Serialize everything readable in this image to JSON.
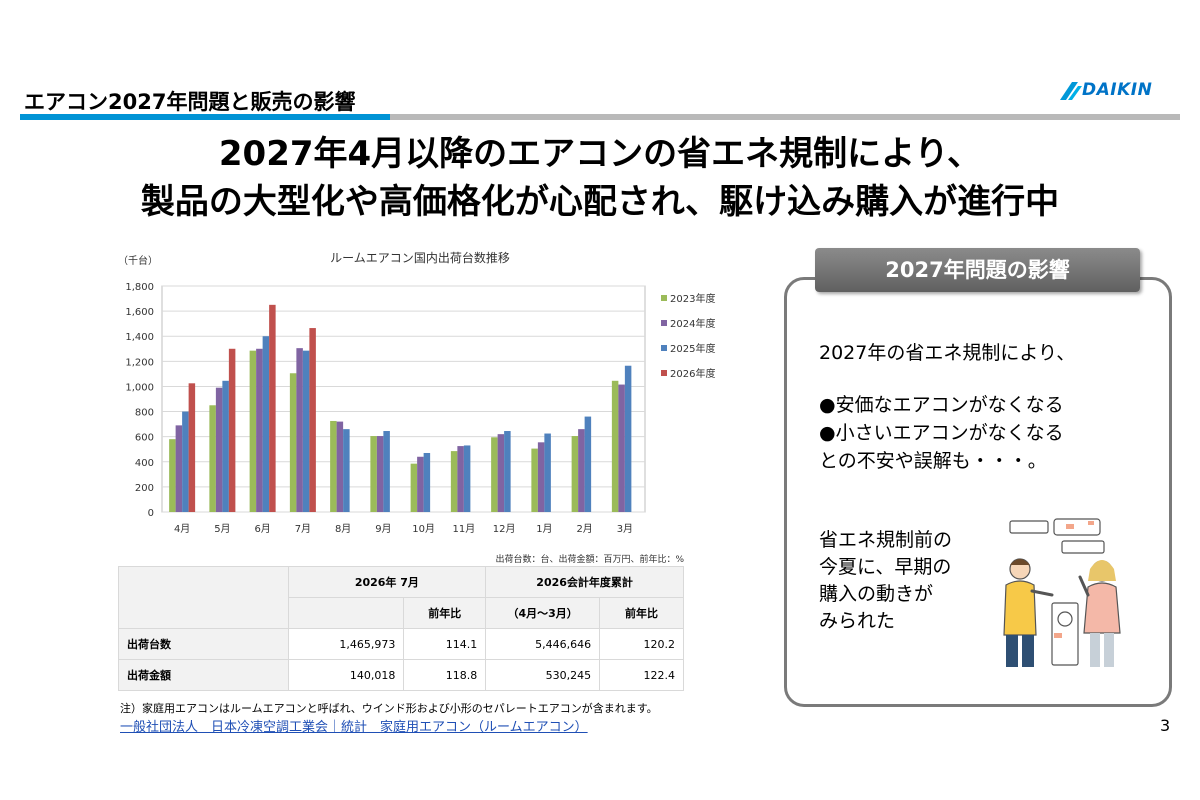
{
  "header": {
    "title": "エアコン2027年問題と販売の影響",
    "logo_text": "DAIKIN"
  },
  "main": {
    "heading_line1": "2027年4月以降のエアコンの省エネ規制により、",
    "heading_line2": "製品の大型化や高価格化が心配され、駆け込み購入が進行中"
  },
  "chart_data": {
    "type": "bar",
    "title": "ルームエアコン国内出荷台数推移",
    "ylabel": "（千台）",
    "ylim": [
      0,
      1800
    ],
    "yticks": [
      "0",
      "200",
      "400",
      "600",
      "800",
      "1,000",
      "1,200",
      "1,400",
      "1,600",
      "1,800"
    ],
    "categories": [
      "4月",
      "5月",
      "6月",
      "7月",
      "8月",
      "9月",
      "10月",
      "11月",
      "12月",
      "1月",
      "2月",
      "3月"
    ],
    "legend_position": "right",
    "grid": true,
    "series": [
      {
        "name": "2023年度",
        "color": "#9bbb59",
        "values": [
          580,
          850,
          1285,
          1105,
          725,
          605,
          385,
          485,
          595,
          505,
          605,
          1045
        ]
      },
      {
        "name": "2024年度",
        "color": "#8064a2",
        "values": [
          690,
          990,
          1300,
          1305,
          720,
          605,
          440,
          525,
          620,
          555,
          660,
          1015
        ]
      },
      {
        "name": "2025年度",
        "color": "#4f81bd",
        "values": [
          800,
          1045,
          1400,
          1285,
          660,
          645,
          470,
          530,
          645,
          625,
          760,
          1165
        ]
      },
      {
        "name": "2026年度",
        "color": "#c0504d",
        "values": [
          1025,
          1300,
          1650,
          1465,
          null,
          null,
          null,
          null,
          null,
          null,
          null,
          null
        ]
      }
    ]
  },
  "table": {
    "unit_note": "出荷台数：台、出荷金額：百万円、前年比：%",
    "col_month": "2026年 7月",
    "col_cumulative": "2026会計年度累計",
    "sub_yoy": "前年比",
    "sub_period": "（4月～3月）",
    "rows": [
      {
        "label": "出荷台数",
        "month_value": "1,465,973",
        "month_yoy": "114.1",
        "cum_value": "5,446,646",
        "cum_yoy": "120.2"
      },
      {
        "label": "出荷金額",
        "month_value": "140,018",
        "month_yoy": "118.8",
        "cum_value": "530,245",
        "cum_yoy": "122.4"
      }
    ]
  },
  "footnote": "注）家庭用エアコンはルームエアコンと呼ばれ、ウインド形および小形のセパレートエアコンが含まれます。",
  "source_link": "一般社団法人　日本冷凍空調工業会｜統計　家庭用エアコン（ルームエアコン）",
  "impact": {
    "title": "2027年問題の影響",
    "line1": "2027年の省エネ規制により、",
    "bullet1": "●安価なエアコンがなくなる",
    "bullet2": "●小さいエアコンがなくなる",
    "line4": "との不安や誤解も・・・。",
    "sub1": "省エネ規制前の",
    "sub2": "今夏に、早期の",
    "sub3": "購入の動きが",
    "sub4": "みられた"
  },
  "page_number": "3"
}
